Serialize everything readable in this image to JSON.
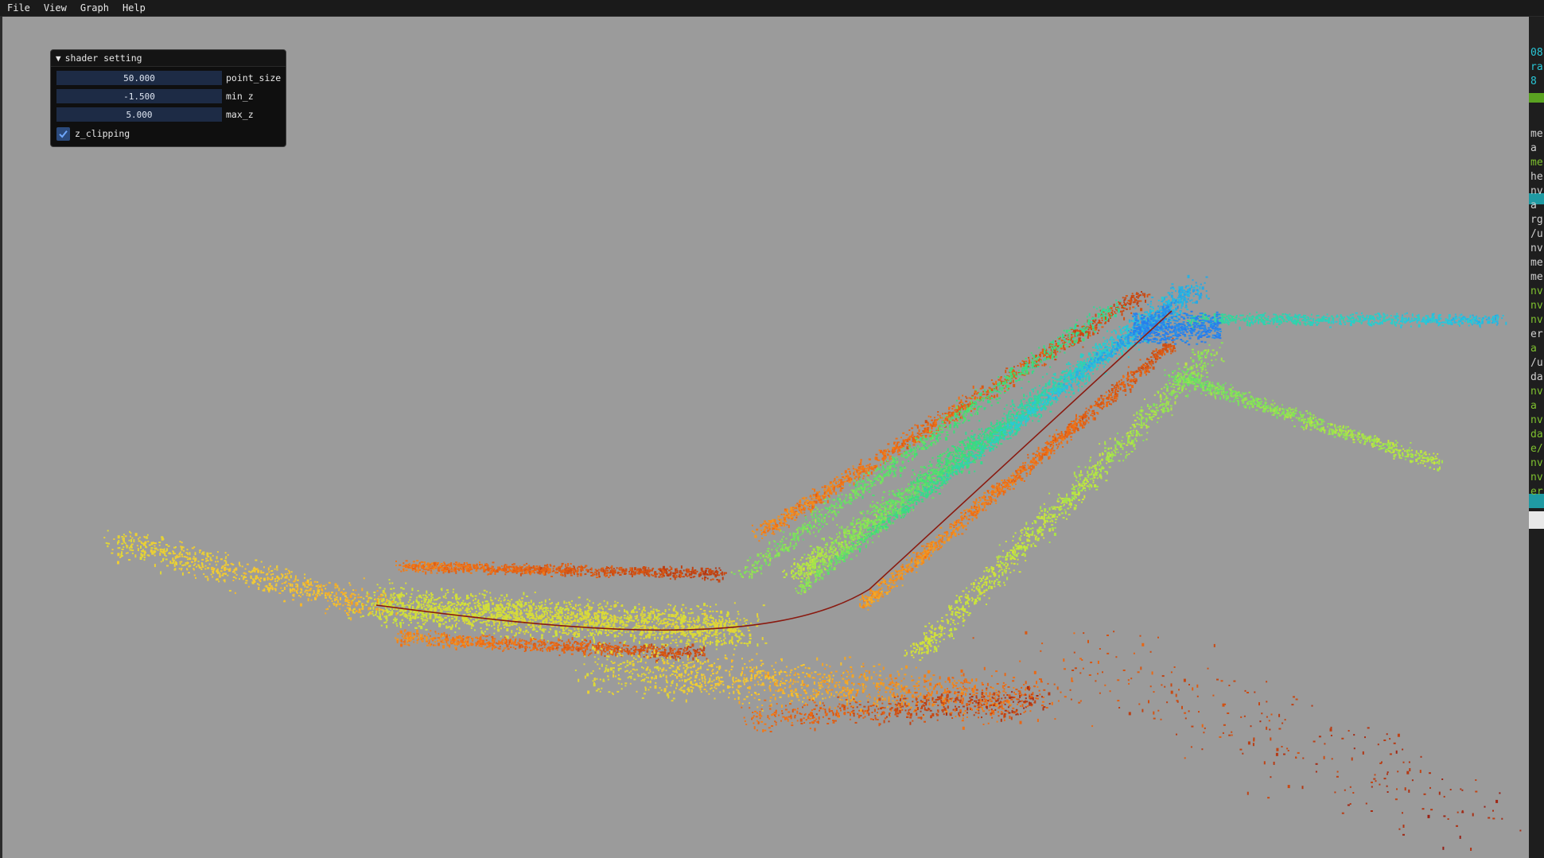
{
  "menubar": {
    "items": [
      {
        "label": "File"
      },
      {
        "label": "View"
      },
      {
        "label": "Graph"
      },
      {
        "label": "Help"
      }
    ]
  },
  "shader_panel": {
    "title": "shader setting",
    "collapse_icon": "triangle-down-icon",
    "fields": {
      "point_size": {
        "value": "50.000",
        "label": "point_size"
      },
      "min_z": {
        "value": "-1.500",
        "label": "min_z"
      },
      "max_z": {
        "value": "5.000",
        "label": "max_z"
      }
    },
    "z_clipping": {
      "label": "z_clipping",
      "checked": true
    }
  },
  "terminal": {
    "lines": [
      {
        "text": "08",
        "color": "#29c6d6"
      },
      {
        "text": "ra",
        "color": "#29c6d6"
      },
      {
        "text": "8",
        "color": "#29c6d6"
      },
      {
        "text": "me",
        "color": "#cfcfcf"
      },
      {
        "text": "a",
        "color": "#cfcfcf"
      },
      {
        "text": "me",
        "color": "#7ec12f"
      },
      {
        "text": "he",
        "color": "#cfcfcf"
      },
      {
        "text": "nv",
        "color": "#cfcfcf"
      },
      {
        "text": "a",
        "color": "#cfcfcf"
      },
      {
        "text": "rg",
        "color": "#cfcfcf"
      },
      {
        "text": "/u",
        "color": "#cfcfcf"
      },
      {
        "text": "nv",
        "color": "#cfcfcf"
      },
      {
        "text": "me",
        "color": "#cfcfcf"
      },
      {
        "text": "me",
        "color": "#cfcfcf"
      },
      {
        "text": "nv",
        "color": "#7ec12f"
      },
      {
        "text": "nv",
        "color": "#7ec12f"
      },
      {
        "text": "nv",
        "color": "#7ec12f"
      },
      {
        "text": "er",
        "color": "#cfcfcf"
      },
      {
        "text": "a",
        "color": "#7ec12f"
      },
      {
        "text": "/u",
        "color": "#cfcfcf"
      },
      {
        "text": "da",
        "color": "#cfcfcf"
      },
      {
        "text": "nv",
        "color": "#7ec12f"
      },
      {
        "text": "a",
        "color": "#7ec12f"
      },
      {
        "text": "nv",
        "color": "#7ec12f"
      },
      {
        "text": "da",
        "color": "#7ec12f"
      },
      {
        "text": "e/",
        "color": "#7ec12f"
      },
      {
        "text": "nv",
        "color": "#7ec12f"
      },
      {
        "text": "nv",
        "color": "#7ec12f"
      },
      {
        "text": "er",
        "color": "#7ec12f"
      }
    ]
  },
  "colors": {
    "background": "#9b9b9b",
    "menubar": "#1a1a1a",
    "panel": "#0f0f0f",
    "field": "#1d2b45",
    "checkbox": "#2b4a7c"
  }
}
